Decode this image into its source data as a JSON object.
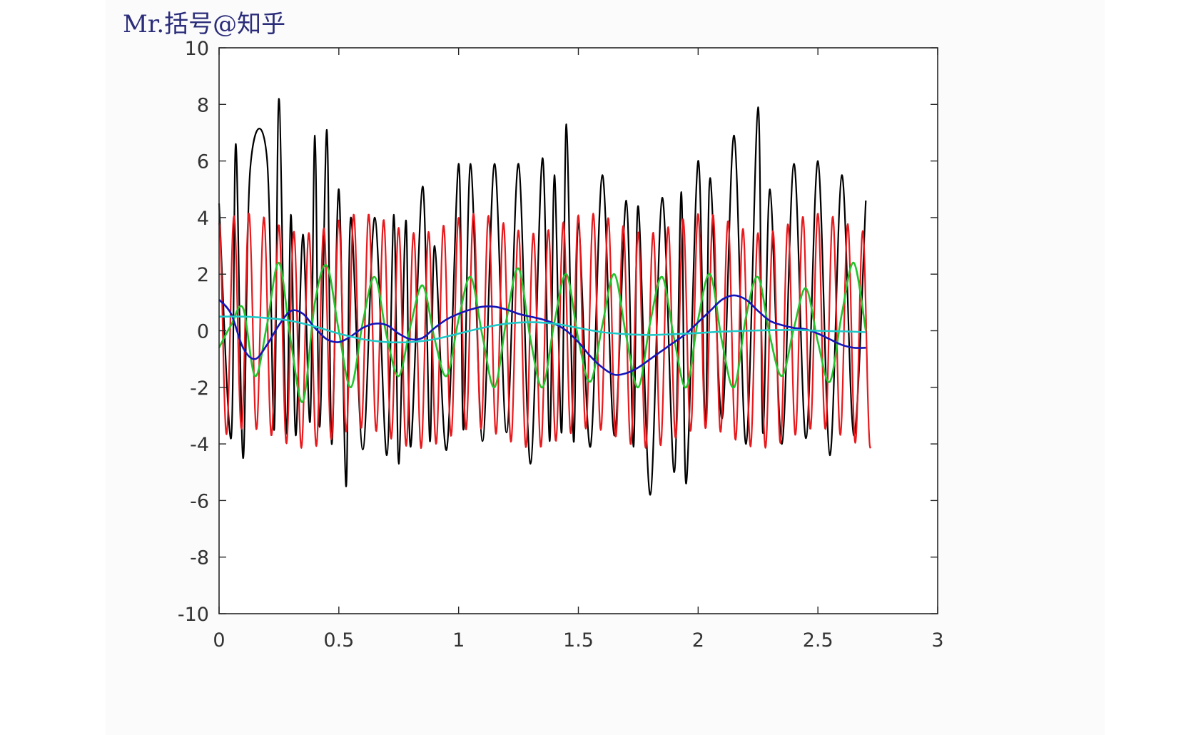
{
  "watermark": "Mr.括号@知乎",
  "chart_data": {
    "type": "line",
    "title": "",
    "xlabel": "",
    "ylabel": "",
    "xlim": [
      0,
      3
    ],
    "ylim": [
      -10,
      10
    ],
    "xticks": [
      0,
      0.5,
      1,
      1.5,
      2,
      2.5,
      3
    ],
    "xtick_labels": [
      "0",
      "0.5",
      "1",
      "1.5",
      "2",
      "2.5",
      "3"
    ],
    "yticks": [
      -10,
      -8,
      -6,
      -4,
      -2,
      0,
      2,
      4,
      6,
      8,
      10
    ],
    "ytick_labels": [
      "-10",
      "-8",
      "-6",
      "-4",
      "-2",
      "0",
      "2",
      "4",
      "6",
      "8",
      "10"
    ],
    "grid": false,
    "series": [
      {
        "color": "#000000",
        "x": [
          0.0,
          0.05,
          0.07,
          0.1,
          0.13,
          0.2,
          0.23,
          0.25,
          0.28,
          0.3,
          0.32,
          0.35,
          0.38,
          0.4,
          0.42,
          0.45,
          0.47,
          0.5,
          0.53,
          0.55,
          0.6,
          0.65,
          0.7,
          0.73,
          0.75,
          0.78,
          0.8,
          0.85,
          0.88,
          0.9,
          0.95,
          1.0,
          1.02,
          1.05,
          1.1,
          1.15,
          1.2,
          1.25,
          1.3,
          1.35,
          1.38,
          1.4,
          1.43,
          1.45,
          1.48,
          1.5,
          1.55,
          1.6,
          1.65,
          1.7,
          1.73,
          1.75,
          1.8,
          1.85,
          1.9,
          1.93,
          1.95,
          2.0,
          2.03,
          2.05,
          2.1,
          2.15,
          2.2,
          2.25,
          2.27,
          2.3,
          2.35,
          2.4,
          2.45,
          2.5,
          2.55,
          2.6,
          2.65,
          2.7
        ],
        "y": [
          4.5,
          -3.8,
          6.6,
          -4.5,
          5.7,
          6.1,
          -3.5,
          8.2,
          -3.6,
          4.1,
          -3.7,
          3.4,
          -3.2,
          6.9,
          -3.4,
          7.1,
          -4.0,
          5.0,
          -5.5,
          4.0,
          -4.2,
          4.0,
          -4.4,
          4.1,
          -4.7,
          3.9,
          -4.1,
          5.1,
          -3.9,
          3.0,
          -4.2,
          5.9,
          -3.5,
          5.9,
          -3.9,
          5.9,
          -3.6,
          5.9,
          -4.7,
          6.1,
          -3.9,
          5.5,
          -3.6,
          7.3,
          -3.9,
          3.8,
          -4.1,
          5.5,
          -3.7,
          4.6,
          -4.1,
          4.4,
          -5.8,
          4.7,
          -5.0,
          4.9,
          -5.4,
          6.0,
          -3.4,
          5.4,
          -3.1,
          6.9,
          -4.0,
          7.9,
          -3.6,
          5.0,
          -4.0,
          5.9,
          -3.8,
          6.0,
          -4.4,
          5.5,
          -3.7,
          4.6
        ]
      },
      {
        "color": "#e8191d",
        "frequency": 16,
        "amplitude": 3.8,
        "x_end": 2.72
      },
      {
        "color": "#22c32b",
        "x": [
          0.0,
          0.05,
          0.1,
          0.15,
          0.2,
          0.25,
          0.3,
          0.35,
          0.4,
          0.45,
          0.5,
          0.55,
          0.6,
          0.65,
          0.7,
          0.75,
          0.8,
          0.85,
          0.9,
          0.95,
          1.0,
          1.05,
          1.1,
          1.15,
          1.2,
          1.25,
          1.3,
          1.35,
          1.4,
          1.45,
          1.5,
          1.55,
          1.6,
          1.65,
          1.7,
          1.75,
          1.8,
          1.85,
          1.9,
          1.95,
          2.0,
          2.05,
          2.1,
          2.15,
          2.2,
          2.25,
          2.3,
          2.35,
          2.4,
          2.45,
          2.5,
          2.55,
          2.6,
          2.65,
          2.7
        ],
        "y": [
          -0.6,
          0.2,
          0.8,
          -1.6,
          0.2,
          2.4,
          -0.4,
          -2.5,
          1.0,
          2.3,
          0.0,
          -2.0,
          0.3,
          1.9,
          -0.2,
          -1.6,
          0.2,
          1.6,
          -0.3,
          -1.6,
          0.4,
          1.9,
          -0.2,
          -2.0,
          0.4,
          2.2,
          -0.3,
          -2.0,
          0.3,
          2.0,
          -0.3,
          -1.8,
          0.2,
          2.0,
          -0.2,
          -2.0,
          0.3,
          1.9,
          -0.3,
          -2.0,
          0.4,
          2.0,
          -0.4,
          -2.0,
          0.5,
          1.9,
          -0.2,
          -1.6,
          0.1,
          1.5,
          -0.4,
          -1.8,
          0.6,
          2.4,
          0.0
        ]
      },
      {
        "color": "#1515b8",
        "x": [
          0.0,
          0.05,
          0.1,
          0.15,
          0.2,
          0.25,
          0.3,
          0.35,
          0.4,
          0.45,
          0.5,
          0.55,
          0.6,
          0.65,
          0.7,
          0.75,
          0.8,
          0.85,
          0.9,
          0.95,
          1.0,
          1.05,
          1.1,
          1.15,
          1.2,
          1.25,
          1.3,
          1.35,
          1.4,
          1.45,
          1.5,
          1.55,
          1.6,
          1.65,
          1.7,
          1.75,
          1.8,
          1.85,
          1.9,
          1.95,
          2.0,
          2.05,
          2.1,
          2.15,
          2.2,
          2.25,
          2.3,
          2.35,
          2.4,
          2.45,
          2.5,
          2.55,
          2.6,
          2.65,
          2.7
        ],
        "y": [
          1.1,
          0.6,
          -0.6,
          -1.0,
          -0.5,
          0.2,
          0.7,
          0.6,
          0.1,
          -0.3,
          -0.4,
          -0.2,
          0.1,
          0.25,
          0.2,
          -0.1,
          -0.3,
          -0.25,
          0.1,
          0.4,
          0.6,
          0.75,
          0.85,
          0.85,
          0.75,
          0.6,
          0.5,
          0.4,
          0.25,
          0.0,
          -0.4,
          -0.9,
          -1.3,
          -1.55,
          -1.5,
          -1.3,
          -1.0,
          -0.7,
          -0.4,
          -0.1,
          0.3,
          0.7,
          1.1,
          1.25,
          1.1,
          0.7,
          0.35,
          0.2,
          0.1,
          0.05,
          -0.1,
          -0.3,
          -0.5,
          -0.6,
          -0.6
        ]
      },
      {
        "color": "#20c8c8",
        "x": [
          0.0,
          0.1,
          0.2,
          0.3,
          0.4,
          0.5,
          0.6,
          0.7,
          0.8,
          0.9,
          1.0,
          1.1,
          1.2,
          1.3,
          1.4,
          1.5,
          1.6,
          1.7,
          1.8,
          1.9,
          2.0,
          2.1,
          2.2,
          2.3,
          2.4,
          2.5,
          2.6,
          2.7
        ],
        "y": [
          0.5,
          0.5,
          0.45,
          0.35,
          0.15,
          -0.1,
          -0.3,
          -0.4,
          -0.4,
          -0.3,
          -0.1,
          0.1,
          0.25,
          0.3,
          0.25,
          0.1,
          -0.05,
          -0.12,
          -0.15,
          -0.12,
          -0.08,
          -0.03,
          0.0,
          0.02,
          0.03,
          0.0,
          -0.02,
          -0.05
        ]
      }
    ]
  }
}
